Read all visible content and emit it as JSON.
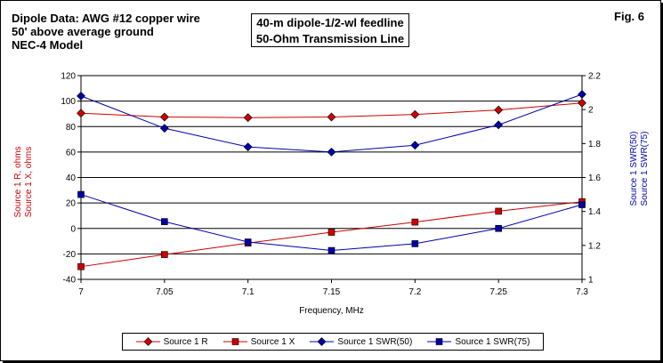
{
  "header": {
    "line1": "Dipole Data:  AWG #12 copper wire",
    "line2": "50' above average ground",
    "line3": "NEC-4 Model",
    "fig": "Fig. 6",
    "title1": "40-m dipole-1/2-wl feedline",
    "title2": "50-Ohm Transmission Line"
  },
  "chart_data": {
    "type": "line",
    "x": [
      7,
      7.05,
      7.1,
      7.15,
      7.2,
      7.25,
      7.3
    ],
    "xlabel": "Frequency, MHz",
    "xlim": [
      7,
      7.3
    ],
    "xticks": [
      "7",
      "7.05",
      "7.1",
      "7.15",
      "7.2",
      "7.25",
      "7.3"
    ],
    "ylabel_left": [
      "Source 1 R,  ohms",
      "Source 1 X,  ohms"
    ],
    "ylabel_right": [
      "Source 1 SWR(50)",
      "Source 1 SWR(75)"
    ],
    "ylim_left": [
      -40,
      120
    ],
    "yticks_left": [
      "-40",
      "-20",
      "0",
      "20",
      "40",
      "60",
      "80",
      "100",
      "120"
    ],
    "ylim_right": [
      1,
      2.2
    ],
    "yticks_right": [
      "1",
      "1.2",
      "1.4",
      "1.6",
      "1.8",
      "2",
      "2.2"
    ],
    "grid": "horizontal",
    "legend": "bottom",
    "series": [
      {
        "name": "Source 1 R",
        "axis": "left",
        "marker": "diamond",
        "color": "#cc0000",
        "values": [
          90.5,
          87.5,
          87,
          87.5,
          89.5,
          93,
          98.5
        ]
      },
      {
        "name": "Source 1 X",
        "axis": "left",
        "marker": "square",
        "color": "#cc0000",
        "values": [
          -30,
          -20.5,
          -11.5,
          -3,
          5,
          13.5,
          21
        ]
      },
      {
        "name": "Source 1 SWR(50)",
        "axis": "right",
        "marker": "diamond",
        "color": "#0000aa",
        "values": [
          2.08,
          1.89,
          1.78,
          1.75,
          1.79,
          1.91,
          2.09
        ]
      },
      {
        "name": "Source 1 SWR(75)",
        "axis": "right",
        "marker": "square",
        "color": "#0000aa",
        "values": [
          1.5,
          1.34,
          1.22,
          1.17,
          1.21,
          1.3,
          1.44
        ]
      }
    ],
    "colors": {
      "left_axis_label": "#cc0000",
      "right_axis_label": "#0000aa"
    }
  }
}
